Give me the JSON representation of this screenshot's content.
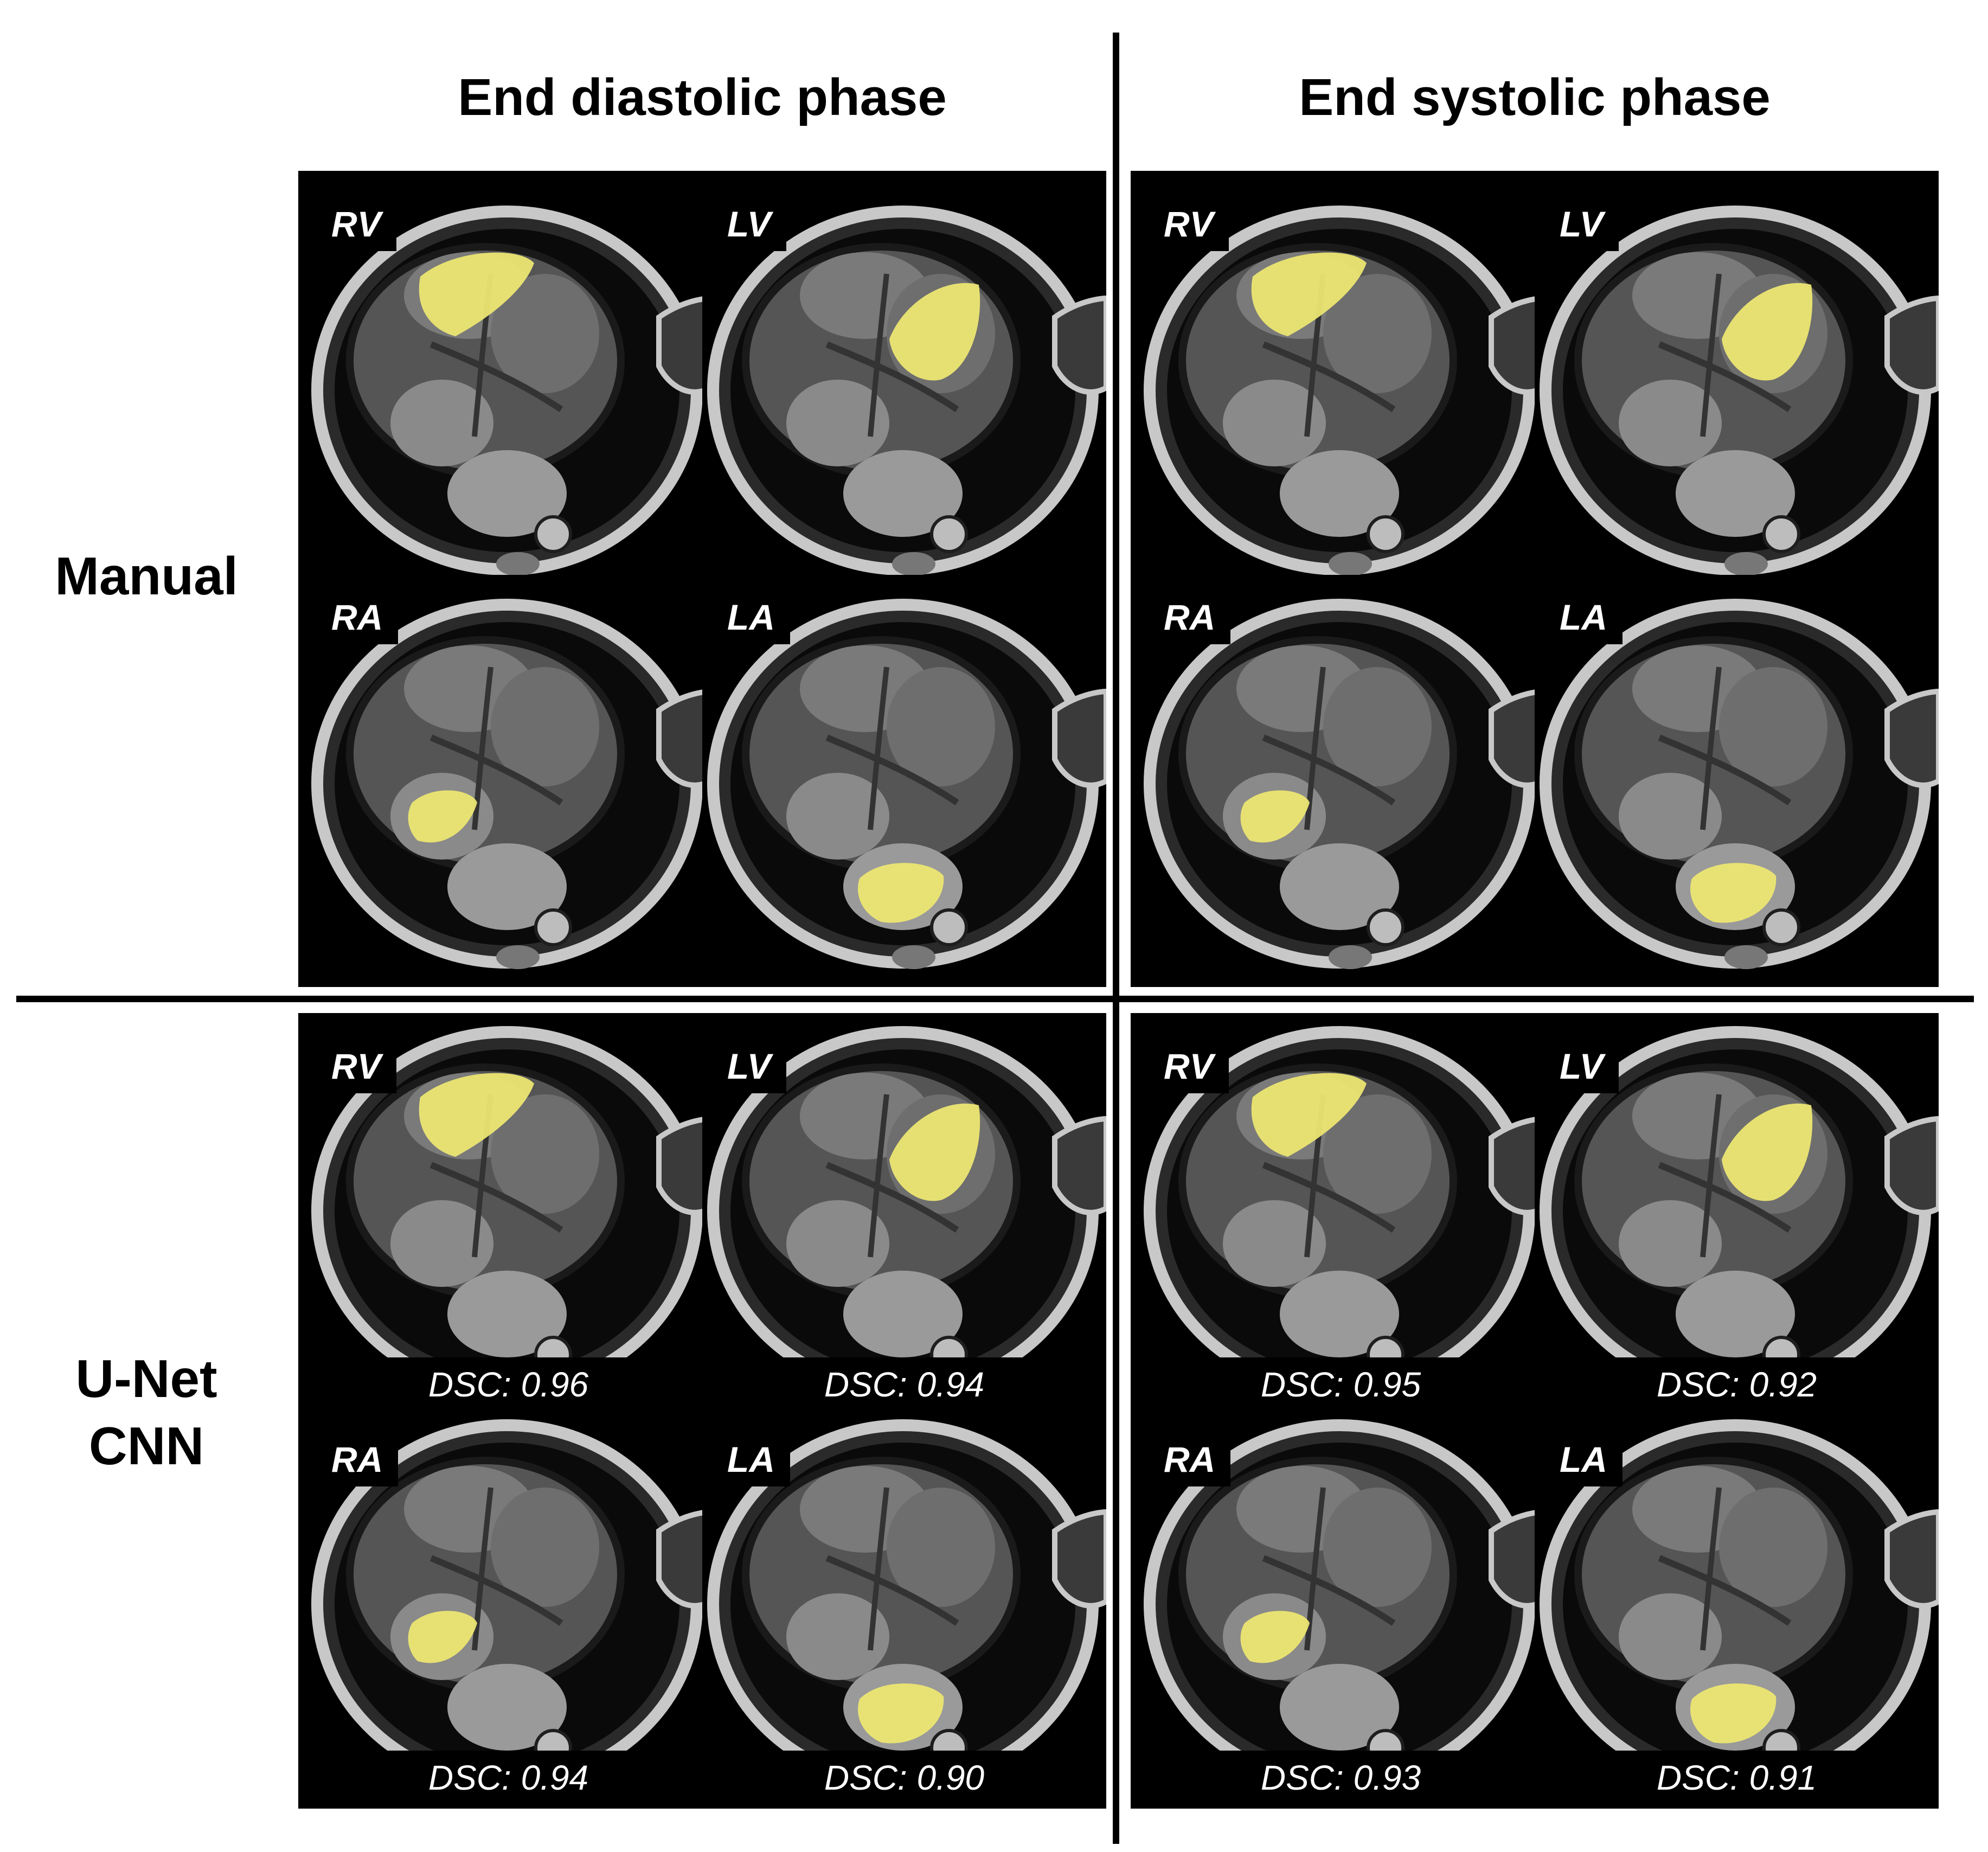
{
  "columns": {
    "ed": "End diastolic phase",
    "es": "End systolic phase"
  },
  "rows": {
    "manual": [
      "Manual"
    ],
    "cnn": [
      "U-Net",
      "CNN"
    ]
  },
  "overlay_color": "#ece672",
  "panels": [
    {
      "id": "manual-ed",
      "row": "manual",
      "col": "ed",
      "cells": [
        {
          "label": "RV",
          "mask": "rv"
        },
        {
          "label": "LV",
          "mask": "lv"
        },
        {
          "label": "RA",
          "mask": "ra"
        },
        {
          "label": "LA",
          "mask": "la"
        }
      ]
    },
    {
      "id": "manual-es",
      "row": "manual",
      "col": "es",
      "cells": [
        {
          "label": "RV",
          "mask": "rv"
        },
        {
          "label": "LV",
          "mask": "lv"
        },
        {
          "label": "RA",
          "mask": "ra"
        },
        {
          "label": "LA",
          "mask": "la"
        }
      ]
    },
    {
      "id": "cnn-ed",
      "row": "cnn",
      "col": "ed",
      "cells": [
        {
          "label": "RV",
          "mask": "rv",
          "dsc": "DSC: 0.96"
        },
        {
          "label": "LV",
          "mask": "lv",
          "dsc": "DSC: 0.94"
        },
        {
          "label": "RA",
          "mask": "ra",
          "dsc": "DSC: 0.94"
        },
        {
          "label": "LA",
          "mask": "la",
          "dsc": "DSC: 0.90"
        }
      ]
    },
    {
      "id": "cnn-es",
      "row": "cnn",
      "col": "es",
      "cells": [
        {
          "label": "RV",
          "mask": "rv",
          "dsc": "DSC: 0.95"
        },
        {
          "label": "LV",
          "mask": "lv",
          "dsc": "DSC: 0.92"
        },
        {
          "label": "RA",
          "mask": "ra",
          "dsc": "DSC: 0.93"
        },
        {
          "label": "LA",
          "mask": "la",
          "dsc": "DSC: 0.91"
        }
      ]
    }
  ]
}
